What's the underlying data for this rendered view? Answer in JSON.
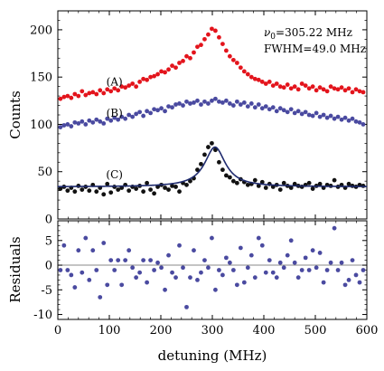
{
  "chart_data": [
    {
      "type": "scatter",
      "title": "",
      "xlabel": "",
      "ylabel": "Counts",
      "xlim": [
        0,
        600
      ],
      "ylim": [
        0,
        220
      ],
      "x_ticks": [
        0,
        100,
        200,
        300,
        400,
        500,
        600
      ],
      "y_ticks": [
        0,
        50,
        100,
        150,
        200
      ],
      "y_tick_labels": [
        "0",
        "50",
        "100",
        "150",
        "200"
      ],
      "annotations": {
        "nu0": "ν",
        "nu0_sub": "0",
        "nu0_value": "=305.22 MHz",
        "fwhm": "FWHM=49.0 MHz"
      },
      "fit": {
        "kind": "lorentzian",
        "center": 305.22,
        "fwhm": 49.0,
        "amplitude": 42,
        "baseline": 34,
        "color": "#1e2a6e"
      },
      "series": [
        {
          "label": "(A)",
          "color": "#e3141c",
          "x": [
            5,
            12,
            19,
            26,
            33,
            40,
            47,
            54,
            61,
            68,
            75,
            82,
            89,
            96,
            103,
            110,
            117,
            124,
            131,
            138,
            145,
            152,
            159,
            166,
            173,
            180,
            187,
            194,
            201,
            208,
            215,
            222,
            229,
            236,
            243,
            250,
            257,
            264,
            271,
            278,
            285,
            292,
            299,
            306,
            313,
            320,
            327,
            334,
            341,
            348,
            355,
            362,
            369,
            376,
            383,
            390,
            397,
            404,
            411,
            418,
            425,
            432,
            439,
            446,
            453,
            460,
            467,
            474,
            481,
            488,
            495,
            502,
            509,
            516,
            523,
            530,
            537,
            544,
            551,
            558,
            565,
            572,
            579,
            586,
            593
          ],
          "y": [
            127,
            129,
            130,
            128,
            132,
            130,
            135,
            131,
            133,
            134,
            132,
            136,
            133,
            137,
            135,
            138,
            136,
            140,
            139,
            141,
            143,
            140,
            145,
            148,
            147,
            150,
            151,
            153,
            156,
            155,
            158,
            162,
            160,
            165,
            167,
            172,
            170,
            176,
            182,
            184,
            190,
            195,
            201,
            199,
            192,
            185,
            178,
            172,
            168,
            165,
            160,
            156,
            153,
            150,
            148,
            147,
            145,
            143,
            145,
            141,
            143,
            140,
            139,
            142,
            138,
            140,
            137,
            143,
            141,
            138,
            140,
            136,
            139,
            137,
            135,
            140,
            138,
            137,
            139,
            136,
            138,
            134,
            137,
            135,
            134
          ]
        },
        {
          "label": "(B)",
          "color": "#4a4aa0",
          "x": [
            5,
            12,
            19,
            26,
            33,
            40,
            47,
            54,
            61,
            68,
            75,
            82,
            89,
            96,
            103,
            110,
            117,
            124,
            131,
            138,
            145,
            152,
            159,
            166,
            173,
            180,
            187,
            194,
            201,
            208,
            215,
            222,
            229,
            236,
            243,
            250,
            257,
            264,
            271,
            278,
            285,
            292,
            299,
            306,
            313,
            320,
            327,
            334,
            341,
            348,
            355,
            362,
            369,
            376,
            383,
            390,
            397,
            404,
            411,
            418,
            425,
            432,
            439,
            446,
            453,
            460,
            467,
            474,
            481,
            488,
            495,
            502,
            509,
            516,
            523,
            530,
            537,
            544,
            551,
            558,
            565,
            572,
            579,
            586,
            593
          ],
          "y": [
            97,
            99,
            100,
            98,
            102,
            101,
            103,
            100,
            104,
            102,
            105,
            103,
            101,
            106,
            104,
            107,
            105,
            108,
            106,
            110,
            108,
            111,
            113,
            109,
            114,
            112,
            116,
            115,
            117,
            114,
            119,
            118,
            121,
            122,
            120,
            124,
            122,
            123,
            125,
            121,
            124,
            122,
            125,
            127,
            124,
            123,
            125,
            122,
            120,
            124,
            121,
            123,
            119,
            122,
            118,
            121,
            117,
            119,
            116,
            118,
            114,
            117,
            115,
            113,
            116,
            112,
            114,
            111,
            113,
            110,
            109,
            112,
            108,
            110,
            107,
            109,
            106,
            108,
            105,
            107,
            104,
            106,
            103,
            102,
            100
          ]
        },
        {
          "label": "(C)",
          "color": "#111111",
          "x": [
            5,
            12,
            19,
            26,
            33,
            40,
            47,
            54,
            61,
            68,
            75,
            82,
            89,
            96,
            103,
            110,
            117,
            124,
            131,
            138,
            145,
            152,
            159,
            166,
            173,
            180,
            187,
            194,
            201,
            208,
            215,
            222,
            229,
            236,
            243,
            250,
            257,
            264,
            271,
            278,
            285,
            292,
            299,
            306,
            313,
            320,
            327,
            334,
            341,
            348,
            355,
            362,
            369,
            376,
            383,
            390,
            397,
            404,
            411,
            418,
            425,
            432,
            439,
            446,
            453,
            460,
            467,
            474,
            481,
            488,
            495,
            502,
            509,
            516,
            523,
            530,
            537,
            544,
            551,
            558,
            565,
            572,
            579,
            586,
            593
          ],
          "y": [
            32,
            34,
            30,
            33,
            29,
            35,
            31,
            34,
            30,
            36,
            29,
            33,
            26,
            37,
            28,
            34,
            31,
            33,
            36,
            30,
            34,
            32,
            35,
            29,
            38,
            31,
            27,
            34,
            36,
            33,
            31,
            35,
            34,
            29,
            38,
            36,
            40,
            43,
            52,
            58,
            68,
            76,
            80,
            73,
            60,
            52,
            46,
            44,
            40,
            38,
            42,
            39,
            36,
            37,
            41,
            35,
            39,
            33,
            37,
            34,
            36,
            31,
            38,
            35,
            33,
            37,
            35,
            34,
            36,
            38,
            32,
            35,
            37,
            33,
            36,
            35,
            41,
            34,
            36,
            33,
            37,
            35,
            34,
            36,
            35
          ]
        }
      ],
      "series_labels_at_x": [
        110,
        110,
        110
      ],
      "series_label_y": [
        145,
        112,
        47
      ]
    },
    {
      "type": "scatter",
      "title": "",
      "xlabel": "detuning (MHz)",
      "ylabel": "Residuals",
      "xlim": [
        0,
        600
      ],
      "ylim": [
        -11,
        9
      ],
      "x_ticks": [
        0,
        100,
        200,
        300,
        400,
        500,
        600
      ],
      "x_tick_labels": [
        "0",
        "100",
        "200",
        "300",
        "400",
        "500",
        "600"
      ],
      "y_ticks": [
        -10,
        -5,
        0,
        5
      ],
      "y_tick_labels": [
        "-10",
        "-5",
        "0",
        "5"
      ],
      "zero_line": true,
      "color": "#4a4aa0",
      "x": [
        5,
        12,
        19,
        26,
        33,
        40,
        47,
        54,
        61,
        68,
        75,
        82,
        89,
        96,
        103,
        110,
        117,
        124,
        131,
        138,
        145,
        152,
        159,
        166,
        173,
        180,
        187,
        194,
        201,
        208,
        215,
        222,
        229,
        236,
        243,
        250,
        257,
        264,
        271,
        278,
        285,
        292,
        299,
        306,
        313,
        320,
        327,
        334,
        341,
        348,
        355,
        362,
        369,
        376,
        383,
        390,
        397,
        404,
        411,
        418,
        425,
        432,
        439,
        446,
        453,
        460,
        467,
        474,
        481,
        488,
        495,
        502,
        509,
        516,
        523,
        530,
        537,
        544,
        551,
        558,
        565,
        572,
        579,
        586,
        593
      ],
      "y": [
        -1.0,
        4.0,
        -1.0,
        -2.0,
        -4.5,
        3.0,
        -1.5,
        5.5,
        -3.0,
        3.0,
        -1.0,
        -6.5,
        4.5,
        -4.0,
        1.0,
        -1.0,
        1.0,
        -4.0,
        1.0,
        3.0,
        -0.5,
        -2.5,
        -1.5,
        1.0,
        -3.5,
        1.0,
        -1.0,
        0.5,
        -0.5,
        -5.0,
        2.0,
        -1.5,
        -2.5,
        4.0,
        -0.5,
        -8.5,
        -2.5,
        3.0,
        -3.0,
        -1.5,
        1.0,
        -0.5,
        5.5,
        -5.0,
        -1.0,
        -2.0,
        1.5,
        0.5,
        -1.0,
        -4.0,
        3.5,
        -3.5,
        -0.5,
        2.0,
        -2.5,
        5.5,
        4.0,
        -1.5,
        1.0,
        -1.5,
        -2.5,
        0.5,
        -0.5,
        2.0,
        5.0,
        0.5,
        -2.5,
        -1.0,
        1.5,
        -1.0,
        3.0,
        -0.5,
        2.5,
        -3.5,
        -1.0,
        0.5,
        7.5,
        -1.0,
        0.5,
        -4.0,
        -3.0,
        1.0,
        -2.0,
        -3.5,
        -1.0
      ]
    }
  ]
}
